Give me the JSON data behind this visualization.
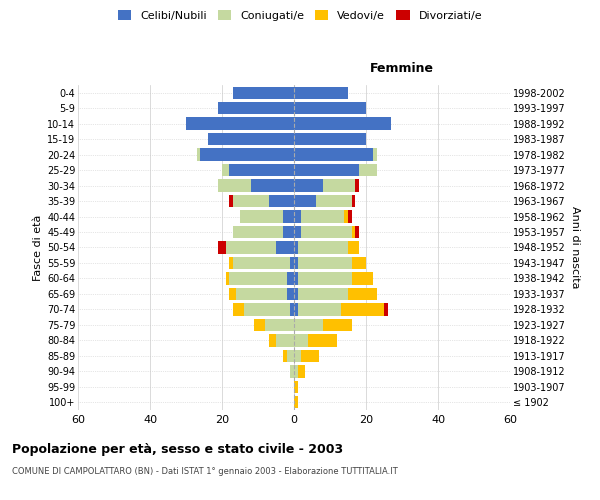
{
  "age_groups": [
    "100+",
    "95-99",
    "90-94",
    "85-89",
    "80-84",
    "75-79",
    "70-74",
    "65-69",
    "60-64",
    "55-59",
    "50-54",
    "45-49",
    "40-44",
    "35-39",
    "30-34",
    "25-29",
    "20-24",
    "15-19",
    "10-14",
    "5-9",
    "0-4"
  ],
  "birth_years": [
    "≤ 1902",
    "1903-1907",
    "1908-1912",
    "1913-1917",
    "1918-1922",
    "1923-1927",
    "1928-1932",
    "1933-1937",
    "1938-1942",
    "1943-1947",
    "1948-1952",
    "1953-1957",
    "1958-1962",
    "1963-1967",
    "1968-1972",
    "1973-1977",
    "1978-1982",
    "1983-1987",
    "1988-1992",
    "1993-1997",
    "1998-2002"
  ],
  "males_celibe": [
    0,
    0,
    0,
    0,
    0,
    0,
    1,
    2,
    2,
    1,
    5,
    3,
    3,
    7,
    12,
    18,
    26,
    24,
    30,
    21,
    17
  ],
  "males_coniugato": [
    0,
    0,
    1,
    2,
    5,
    8,
    13,
    14,
    16,
    16,
    14,
    14,
    12,
    10,
    9,
    2,
    1,
    0,
    0,
    0,
    0
  ],
  "males_vedovo": [
    0,
    0,
    0,
    1,
    2,
    3,
    3,
    2,
    1,
    1,
    0,
    0,
    0,
    0,
    0,
    0,
    0,
    0,
    0,
    0,
    0
  ],
  "males_divorziato": [
    0,
    0,
    0,
    0,
    0,
    0,
    0,
    0,
    0,
    0,
    2,
    0,
    0,
    1,
    0,
    0,
    0,
    0,
    0,
    0,
    0
  ],
  "females_celibe": [
    0,
    0,
    0,
    0,
    0,
    0,
    1,
    1,
    1,
    1,
    1,
    2,
    2,
    6,
    8,
    18,
    22,
    20,
    27,
    20,
    15
  ],
  "females_coniugato": [
    0,
    0,
    1,
    2,
    4,
    8,
    12,
    14,
    15,
    15,
    14,
    14,
    12,
    10,
    9,
    5,
    1,
    0,
    0,
    0,
    0
  ],
  "females_vedovo": [
    1,
    1,
    2,
    5,
    8,
    8,
    12,
    8,
    6,
    4,
    3,
    1,
    1,
    0,
    0,
    0,
    0,
    0,
    0,
    0,
    0
  ],
  "females_divorziato": [
    0,
    0,
    0,
    0,
    0,
    0,
    1,
    0,
    0,
    0,
    0,
    1,
    1,
    1,
    1,
    0,
    0,
    0,
    0,
    0,
    0
  ],
  "colors": {
    "celibe": "#4472C4",
    "coniugato": "#c5d9a0",
    "vedovo": "#ffc000",
    "divorziato": "#cc0000"
  },
  "title": "Popolazione per età, sesso e stato civile - 2003",
  "subtitle": "COMUNE DI CAMPOLATTARO (BN) - Dati ISTAT 1° gennaio 2003 - Elaborazione TUTTITALIA.IT",
  "xlabel_femmine": "Femmine",
  "ylabel_left": "Fasce di età",
  "ylabel_right": "Anni di nascita",
  "xlim": 60,
  "background_color": "#ffffff",
  "grid_color": "#cccccc"
}
